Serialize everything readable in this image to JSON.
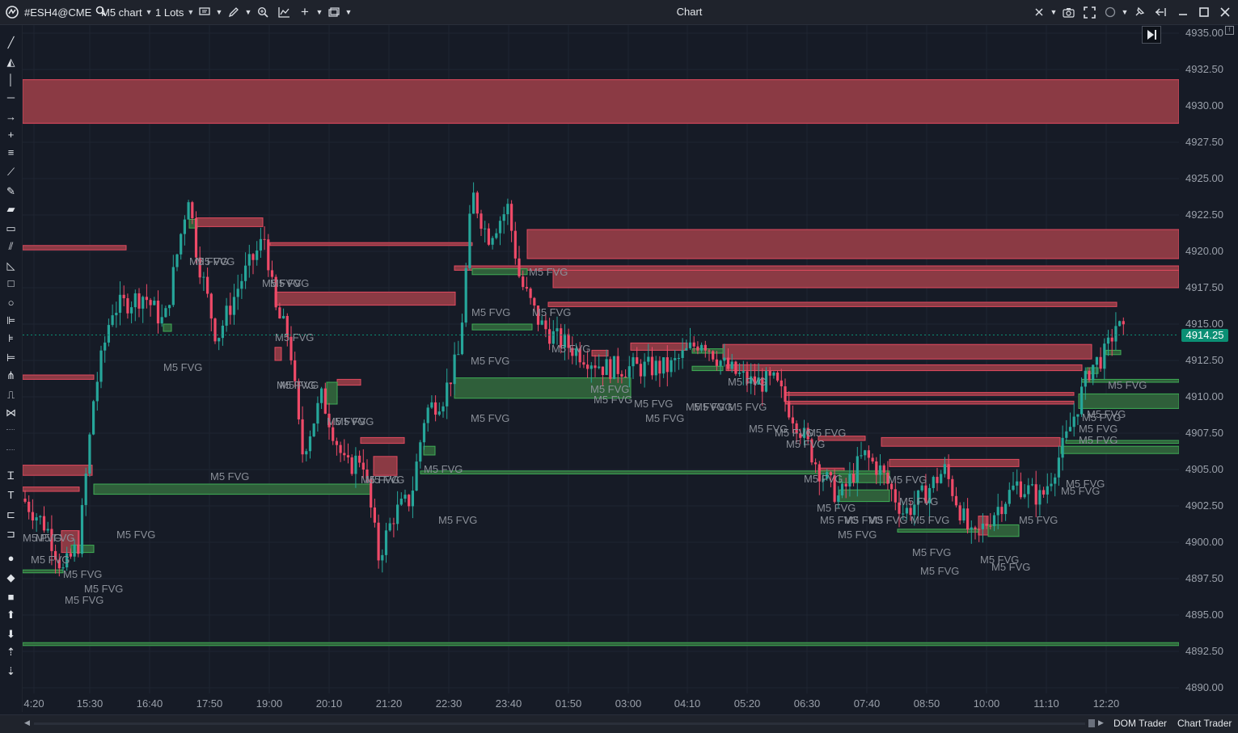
{
  "window": {
    "title": "Chart"
  },
  "toolbar": {
    "instrument": "#ESH4@CME",
    "chart_name": "M5 chart",
    "lots": "1 Lots"
  },
  "bottom": {
    "dom_trader": "DOM Trader",
    "chart_trader": "Chart Trader"
  },
  "price_axis": {
    "labels": [
      "4935.00",
      "4932.50",
      "4930.00",
      "4927.50",
      "4925.00",
      "4922.50",
      "4920.00",
      "4917.50",
      "4915.00",
      "4912.50",
      "4910.00",
      "4907.50",
      "4905.00",
      "4902.50",
      "4900.00",
      "4897.50",
      "4895.00",
      "4892.50",
      "4890.00"
    ],
    "last_price": "4914.25"
  },
  "time_axis": {
    "labels": [
      "4:20",
      "15:30",
      "16:40",
      "17:50",
      "19:00",
      "20:10",
      "21:20",
      "22:30",
      "23:40",
      "01:50",
      "03:00",
      "04:10",
      "05:20",
      "06:30",
      "07:40",
      "08:50",
      "10:00",
      "11:10",
      "12:20"
    ]
  },
  "fvg_label": "M5 FVG",
  "colors": {
    "background": "#161b26",
    "bull_candle": "#26a69a",
    "bear_candle": "#ef4a68",
    "bear_zone": "#8b3a44",
    "bull_zone": "#2f5f3a",
    "last_price_tag": "#0b8f74"
  },
  "icons": {
    "left_toolbar": [
      "line-icon",
      "ray-icon",
      "vertical-line-icon",
      "horizontal-line-icon",
      "arrow-icon",
      "crosshair-icon",
      "hlines-icon",
      "polyline-icon",
      "brush-icon",
      "highlighter-icon",
      "ruler-icon",
      "parallel-icon",
      "triangle-icon",
      "rectangle-icon",
      "circle-icon",
      "fib-icon",
      "fib-ext-icon",
      "gann-icon",
      "pitchfork-icon",
      "path-icon",
      "pattern-icon",
      "text-style-icon",
      "text-icon",
      "label-icon",
      "callout-icon",
      "dot-icon",
      "diamond-icon",
      "square-icon",
      "arrow-up-icon",
      "arrow-down-icon",
      "sort-up-icon",
      "sort-down-icon"
    ]
  }
}
